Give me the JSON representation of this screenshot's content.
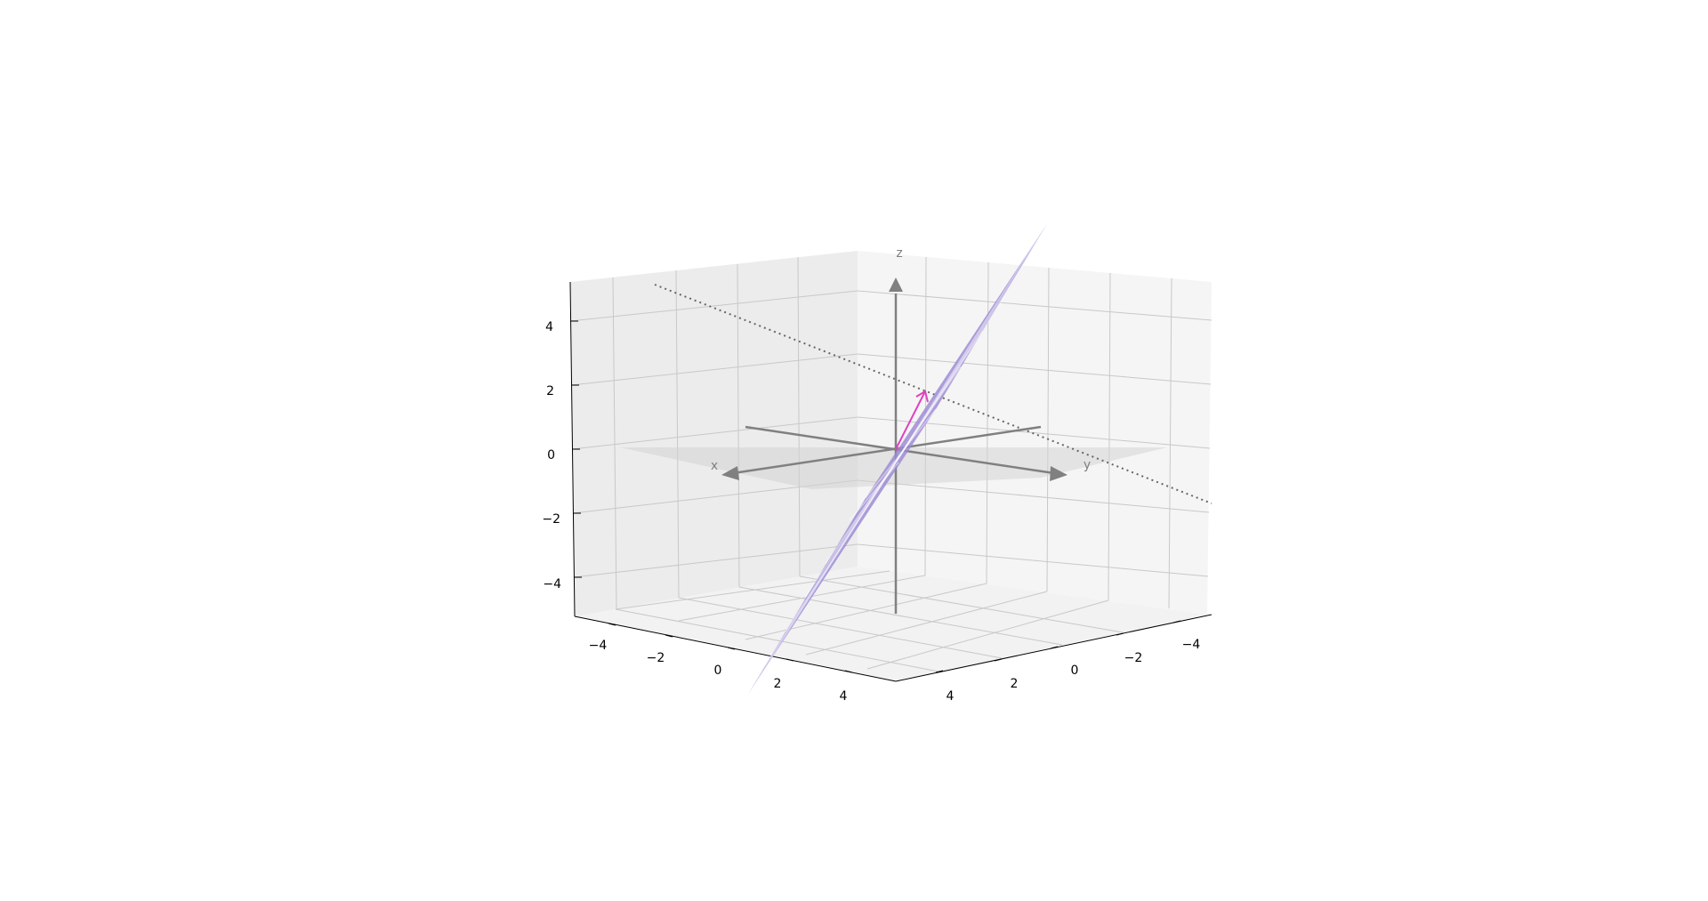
{
  "chart_data": {
    "type": "surface3d",
    "title": "",
    "xlabel": "",
    "ylabel": "",
    "zlabel": "",
    "xlim": [
      -5,
      5
    ],
    "ylim": [
      -5,
      5
    ],
    "zlim": [
      -5,
      5
    ],
    "grid": true,
    "x_ticks": [
      {
        "value": -4,
        "label": "−4"
      },
      {
        "value": -2,
        "label": "−2"
      },
      {
        "value": 0,
        "label": "0"
      },
      {
        "value": 2,
        "label": "2"
      },
      {
        "value": 4,
        "label": "4"
      }
    ],
    "y_ticks": [
      {
        "value": -4,
        "label": "−4"
      },
      {
        "value": -2,
        "label": "−2"
      },
      {
        "value": 0,
        "label": "0"
      },
      {
        "value": 2,
        "label": "2"
      },
      {
        "value": 4,
        "label": "4"
      }
    ],
    "z_ticks": [
      {
        "value": -4,
        "label": "−4"
      },
      {
        "value": -2,
        "label": "−2"
      },
      {
        "value": 0,
        "label": "0"
      },
      {
        "value": 2,
        "label": "2"
      },
      {
        "value": 4,
        "label": "4"
      }
    ],
    "reference_axes": {
      "labels": {
        "x": "x",
        "y": "y",
        "z": "z"
      },
      "color": "#808080"
    },
    "plane_equation": "z = x - y",
    "plane_color": "#9b89d3",
    "xy_plane_color": "#d9d9d9",
    "normal_vector": {
      "from": [
        0,
        0,
        0
      ],
      "to": [
        1,
        -1,
        -1
      ],
      "color": "#e040c0"
    },
    "dotted_line": {
      "from": [
        5,
        -5,
        -5
      ],
      "to": [
        -5,
        5,
        5
      ],
      "color": "#666666"
    }
  }
}
